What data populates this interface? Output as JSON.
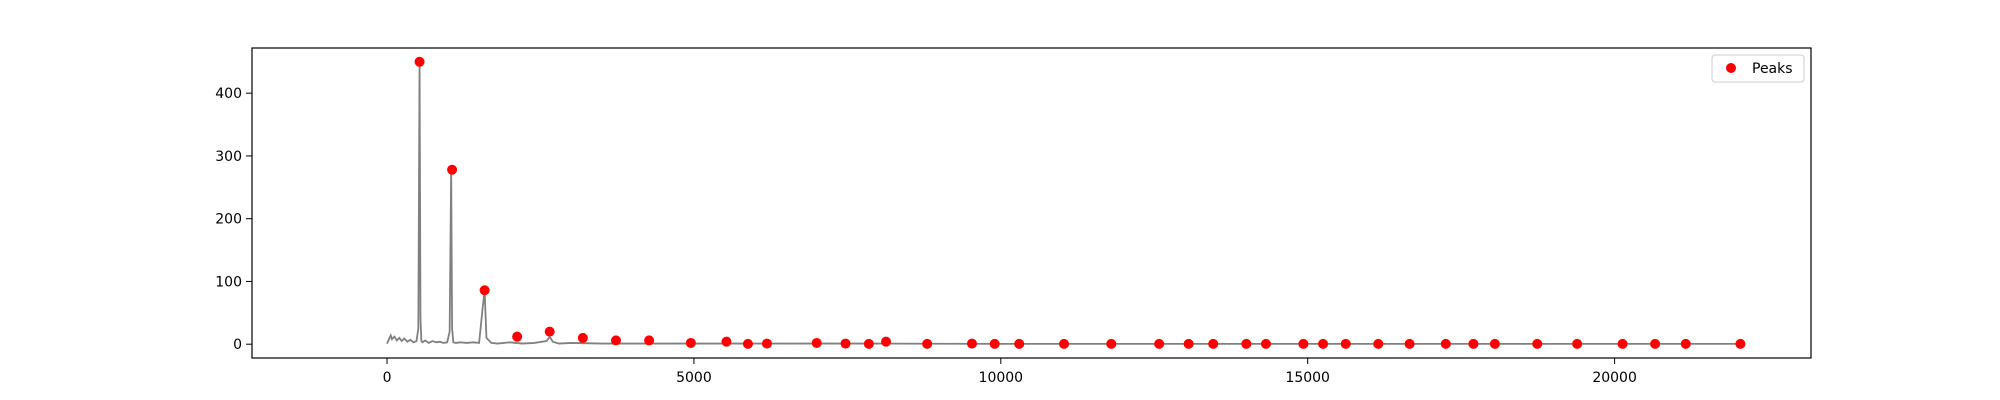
{
  "chart_data": {
    "type": "line",
    "title": "",
    "xlabel": "",
    "ylabel": "",
    "xlim": [
      -2200,
      23200
    ],
    "ylim": [
      -22,
      472
    ],
    "xticks": [
      0,
      5000,
      10000,
      15000,
      20000
    ],
    "yticks": [
      0,
      100,
      200,
      300,
      400
    ],
    "xtick_labels": [
      "0",
      "5000",
      "10000",
      "15000",
      "20000"
    ],
    "ytick_labels": [
      "0",
      "100",
      "200",
      "300",
      "400"
    ],
    "grid": false,
    "legend": {
      "position": "top-right",
      "entries": [
        "Peaks"
      ]
    },
    "colors": {
      "signal": "#808080",
      "peaks": "#ff0000",
      "axes": "#000000"
    },
    "series": [
      {
        "type": "line",
        "x": [
          0,
          60,
          80,
          120,
          160,
          200,
          240,
          280,
          330,
          380,
          430,
          480,
          510,
          530,
          545,
          560,
          580,
          620,
          680,
          740,
          800,
          860,
          920,
          980,
          1020,
          1045,
          1060,
          1080,
          1120,
          1200,
          1300,
          1400,
          1500,
          1560,
          1590,
          1620,
          1700,
          1800,
          2000,
          2200,
          2400,
          2600,
          2650,
          2700,
          2800,
          3000,
          3500,
          4000,
          6000,
          8000,
          10000,
          12000,
          14000,
          16000,
          18000,
          20000,
          22000
        ],
        "y": [
          1,
          14,
          8,
          12,
          6,
          10,
          5,
          9,
          4,
          7,
          3,
          5,
          25,
          450,
          40,
          5,
          3,
          6,
          2,
          5,
          3,
          4,
          2,
          3,
          20,
          278,
          25,
          3,
          2,
          3,
          2,
          3,
          2,
          60,
          85,
          10,
          2,
          1,
          3,
          1,
          2,
          5,
          12,
          4,
          1,
          2,
          1,
          1,
          1,
          1,
          0.5,
          0.5,
          0.5,
          0.5,
          0.5,
          0.5,
          0.5
        ]
      },
      {
        "name": "Peaks",
        "type": "scatter",
        "x": [
          530,
          1060,
          1590,
          2120,
          2650,
          3190,
          3730,
          4270,
          4950,
          5530,
          5880,
          6190,
          7000,
          7470,
          7850,
          8130,
          8800,
          9530,
          9900,
          10300,
          11030,
          11800,
          12580,
          13060,
          13460,
          14000,
          14320,
          14930,
          15250,
          15620,
          16150,
          16660,
          17250,
          17700,
          18050,
          18740,
          19390,
          20130,
          20660,
          21160,
          22050
        ],
        "y": [
          450,
          278,
          86,
          12,
          20,
          10,
          6,
          6,
          2,
          4,
          0.5,
          1,
          2,
          1,
          0.5,
          4,
          0.5,
          1,
          0.5,
          0.5,
          0.5,
          0.5,
          0.5,
          0.5,
          0.5,
          0.5,
          0.5,
          0.5,
          0.5,
          0.5,
          0.5,
          0.5,
          0.5,
          0.5,
          0.5,
          0.5,
          0.5,
          0.5,
          0.5,
          0.5,
          0.5
        ]
      }
    ]
  }
}
